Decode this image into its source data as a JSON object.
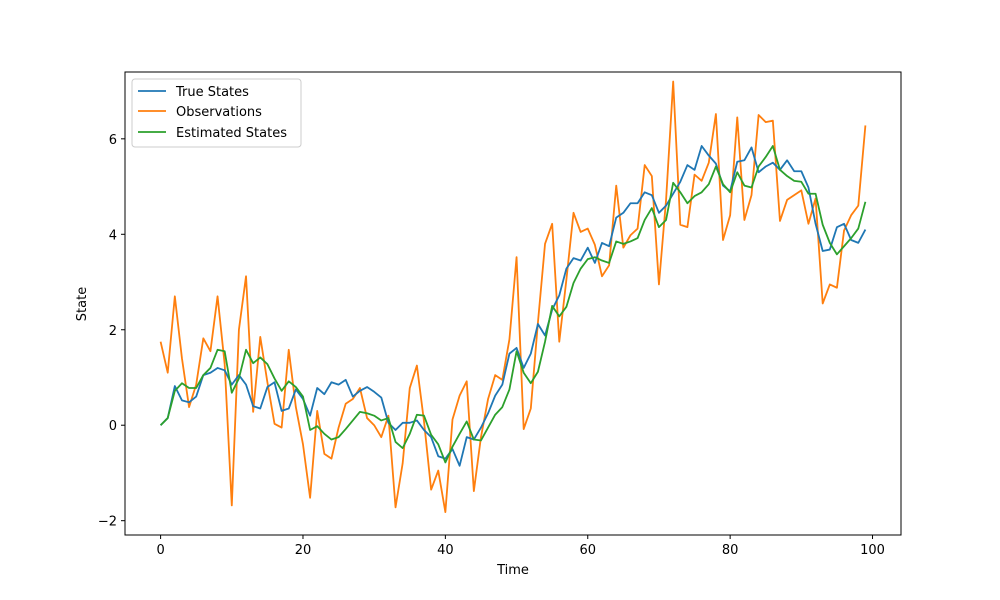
{
  "chart_data": {
    "type": "line",
    "title": "",
    "xlabel": "Time",
    "ylabel": "State",
    "xlim": [
      -5,
      104
    ],
    "ylim": [
      -2.3,
      7.4
    ],
    "xticks": [
      0,
      20,
      40,
      60,
      80,
      100
    ],
    "xtick_labels": [
      "0",
      "20",
      "40",
      "60",
      "80",
      "100"
    ],
    "yticks": [
      -2,
      0,
      2,
      4,
      6
    ],
    "ytick_labels": [
      "−2",
      "0",
      "2",
      "4",
      "6"
    ],
    "grid": false,
    "legend_position": "top-left",
    "series": [
      {
        "name": "True States",
        "color": "#1f77b4",
        "values": [
          0.0,
          0.15,
          0.82,
          0.52,
          0.48,
          0.6,
          1.05,
          1.1,
          1.2,
          1.15,
          0.85,
          1.05,
          0.85,
          0.4,
          0.35,
          0.8,
          0.9,
          0.3,
          0.35,
          0.75,
          0.55,
          0.2,
          0.78,
          0.65,
          0.9,
          0.85,
          0.95,
          0.6,
          0.72,
          0.8,
          0.7,
          0.58,
          0.05,
          -0.1,
          0.05,
          0.05,
          0.1,
          -0.1,
          -0.25,
          -0.65,
          -0.7,
          -0.5,
          -0.85,
          -0.25,
          -0.3,
          -0.05,
          0.25,
          0.62,
          0.85,
          1.5,
          1.62,
          1.2,
          1.5,
          2.12,
          1.88,
          2.42,
          2.72,
          3.28,
          3.5,
          3.45,
          3.72,
          3.4,
          3.82,
          3.75,
          4.35,
          4.45,
          4.65,
          4.65,
          4.88,
          4.82,
          4.45,
          4.6,
          4.85,
          5.1,
          5.45,
          5.35,
          5.85,
          5.65,
          5.48,
          5.02,
          4.9,
          5.52,
          5.55,
          5.82,
          5.3,
          5.42,
          5.5,
          5.35,
          5.55,
          5.32,
          5.32,
          4.98,
          4.22,
          3.65,
          3.68,
          4.15,
          4.22,
          3.88,
          3.82,
          4.1
        ]
      },
      {
        "name": "Observations",
        "color": "#ff7f0e",
        "values": [
          1.75,
          1.1,
          2.7,
          1.4,
          0.38,
          0.85,
          1.82,
          1.55,
          2.7,
          1.28,
          -1.68,
          2.0,
          3.12,
          0.28,
          1.85,
          0.9,
          0.03,
          -0.05,
          1.58,
          0.38,
          -0.4,
          -1.52,
          0.3,
          -0.6,
          -0.7,
          -0.05,
          0.45,
          0.55,
          0.78,
          0.15,
          0.0,
          -0.25,
          0.2,
          -1.72,
          -0.8,
          0.78,
          1.25,
          0.08,
          -1.35,
          -0.95,
          -1.82,
          0.12,
          0.62,
          0.92,
          -1.38,
          -0.25,
          0.55,
          1.05,
          0.95,
          1.8,
          3.52,
          -0.08,
          0.35,
          2.15,
          3.8,
          4.22,
          1.75,
          3.05,
          4.45,
          4.05,
          4.12,
          3.78,
          3.12,
          3.35,
          5.02,
          3.72,
          3.98,
          4.12,
          5.45,
          5.22,
          2.95,
          4.72,
          7.2,
          4.2,
          4.15,
          5.25,
          5.12,
          5.5,
          6.52,
          3.88,
          4.4,
          6.45,
          4.3,
          4.82,
          6.5,
          6.35,
          6.38,
          4.28,
          4.72,
          4.82,
          4.92,
          4.22,
          4.75,
          2.55,
          2.95,
          2.88,
          4.08,
          4.4,
          4.6,
          6.28
        ]
      },
      {
        "name": "Estimated States",
        "color": "#2ca02c",
        "values": [
          0.0,
          0.15,
          0.72,
          0.88,
          0.78,
          0.78,
          1.05,
          1.2,
          1.58,
          1.55,
          0.68,
          0.98,
          1.58,
          1.3,
          1.42,
          1.28,
          0.98,
          0.72,
          0.92,
          0.8,
          0.6,
          -0.1,
          -0.02,
          -0.18,
          -0.3,
          -0.25,
          -0.08,
          0.1,
          0.28,
          0.25,
          0.2,
          0.1,
          0.15,
          -0.35,
          -0.48,
          -0.18,
          0.22,
          0.2,
          -0.2,
          -0.4,
          -0.78,
          -0.45,
          -0.18,
          0.08,
          -0.3,
          -0.32,
          -0.05,
          0.22,
          0.38,
          0.75,
          1.55,
          1.1,
          0.88,
          1.12,
          1.75,
          2.5,
          2.28,
          2.48,
          2.98,
          3.28,
          3.48,
          3.52,
          3.45,
          3.4,
          3.85,
          3.8,
          3.85,
          3.92,
          4.3,
          4.55,
          4.15,
          4.3,
          5.08,
          4.88,
          4.65,
          4.8,
          4.88,
          5.05,
          5.42,
          5.05,
          4.88,
          5.3,
          5.02,
          4.98,
          5.42,
          5.62,
          5.85,
          5.35,
          5.22,
          5.12,
          5.1,
          4.85,
          4.85,
          4.2,
          3.82,
          3.58,
          3.75,
          3.92,
          4.12,
          4.68
        ]
      }
    ]
  }
}
